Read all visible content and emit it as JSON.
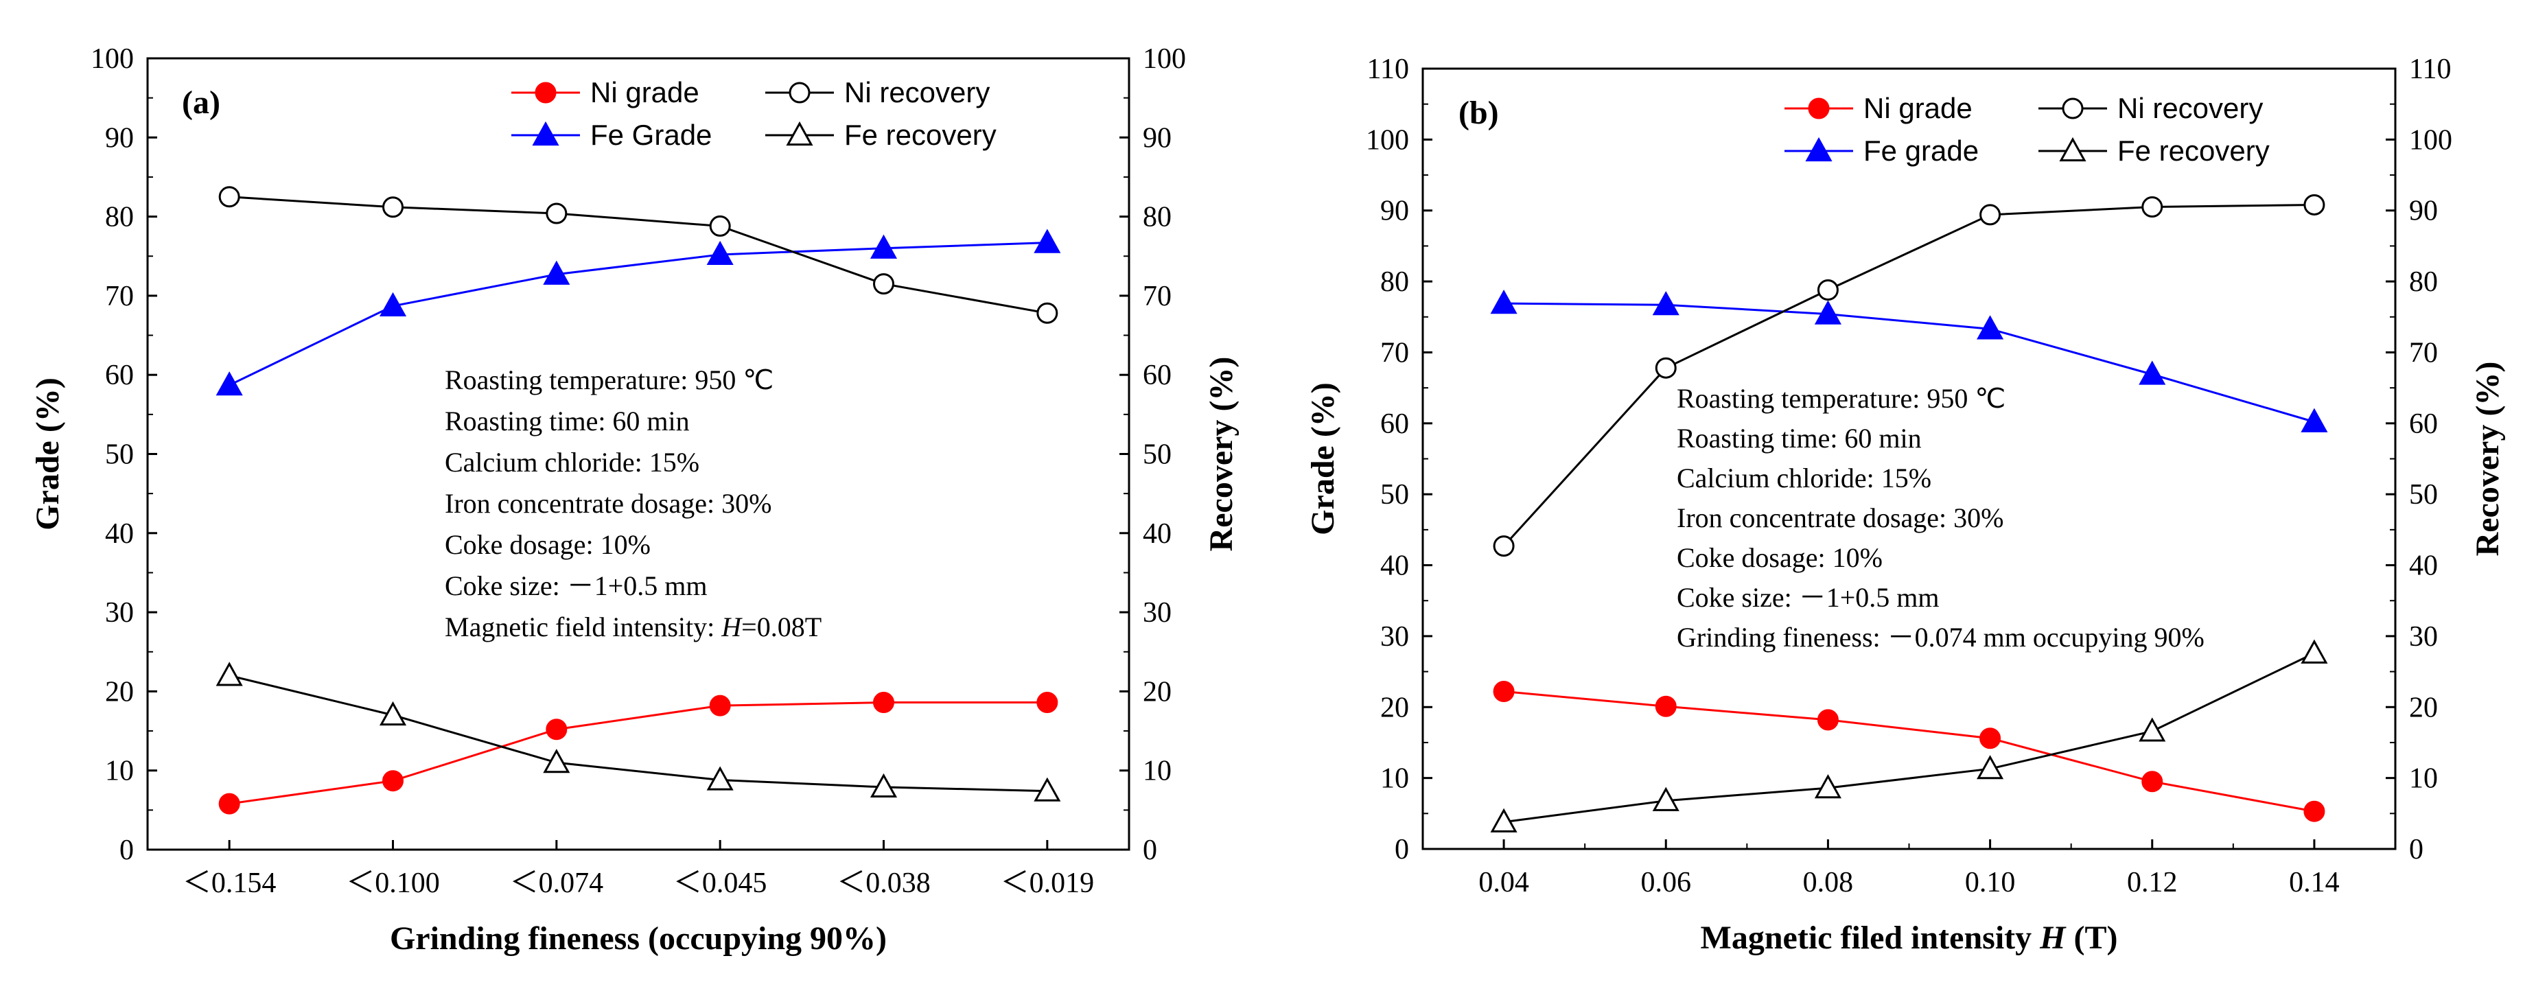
{
  "chart_data": [
    {
      "type": "line",
      "panel_label": "(a)",
      "xlabel": "Grinding fineness (occupying 90%)",
      "ylabel_left": "Grade (%)",
      "ylabel_right": "Recovery (%)",
      "categories": [
        "＜0.154",
        "＜0.100",
        "＜0.074",
        "＜0.045",
        "＜0.038",
        "＜0.019"
      ],
      "ylim": [
        0,
        100
      ],
      "yticks": [
        "0",
        "10",
        "20",
        "30",
        "40",
        "50",
        "60",
        "70",
        "80",
        "90",
        "100"
      ],
      "series": [
        {
          "name": "Ni grade",
          "axis": "left",
          "color": "#ff0000",
          "marker": "circle-filled",
          "values": [
            5.8,
            8.7,
            15.2,
            18.2,
            18.6,
            18.6
          ]
        },
        {
          "name": "Fe Grade",
          "axis": "left",
          "color": "#0000ff",
          "marker": "triangle-filled",
          "values": [
            58.7,
            68.7,
            72.7,
            75.2,
            76.0,
            76.7
          ]
        },
        {
          "name": "Ni recovery",
          "axis": "right",
          "color": "#000000",
          "marker": "circle-open",
          "values": [
            82.5,
            81.2,
            80.4,
            78.8,
            71.5,
            67.8
          ]
        },
        {
          "name": "Fe recovery",
          "axis": "right",
          "color": "#000000",
          "marker": "triangle-open",
          "values": [
            22.0,
            17.0,
            11.0,
            8.8,
            7.9,
            7.4
          ]
        }
      ],
      "annotations": [
        "Roasting temperature: 950 ℃",
        "Roasting time: 60 min",
        "Calcium chloride: 15%",
        "Iron concentrate dosage: 30%",
        "Coke dosage: 10%",
        "Coke size: －1+0.5 mm",
        "Magnetic field intensity: H=0.08T"
      ]
    },
    {
      "type": "line",
      "panel_label": "(b)",
      "xlabel": "Magnetic filed intensity H (T)",
      "ylabel_left": "Grade (%)",
      "ylabel_right": "Recovery (%)",
      "categories": [
        "0.04",
        "0.06",
        "0.08",
        "0.10",
        "0.12",
        "0.14"
      ],
      "x": [
        0.04,
        0.06,
        0.08,
        0.1,
        0.12,
        0.14
      ],
      "xlim": [
        0.03,
        0.15
      ],
      "ylim": [
        0,
        110
      ],
      "yticks": [
        "0",
        "10",
        "20",
        "30",
        "40",
        "50",
        "60",
        "70",
        "80",
        "90",
        "100",
        "110"
      ],
      "series": [
        {
          "name": "Ni grade",
          "axis": "left",
          "color": "#ff0000",
          "marker": "circle-filled",
          "values": [
            22.2,
            20.1,
            18.2,
            15.6,
            9.5,
            5.3
          ]
        },
        {
          "name": "Fe grade",
          "axis": "left",
          "color": "#0000ff",
          "marker": "triangle-filled",
          "values": [
            76.9,
            76.7,
            75.4,
            73.3,
            66.9,
            60.2
          ]
        },
        {
          "name": "Ni recovery",
          "axis": "right",
          "color": "#000000",
          "marker": "circle-open",
          "values": [
            42.7,
            67.8,
            78.8,
            89.4,
            90.5,
            90.8
          ]
        },
        {
          "name": "Fe recovery",
          "axis": "right",
          "color": "#000000",
          "marker": "triangle-open",
          "values": [
            3.8,
            6.8,
            8.6,
            11.3,
            16.6,
            27.6
          ]
        }
      ],
      "annotations": [
        "Roasting temperature: 950 ℃",
        "Roasting time: 60 min",
        "Calcium chloride: 15%",
        "Iron concentrate dosage: 30%",
        "Coke dosage: 10%",
        "Coke size: －1+0.5 mm",
        "Grinding fineness: －0.074 mm occupying 90%"
      ]
    }
  ]
}
